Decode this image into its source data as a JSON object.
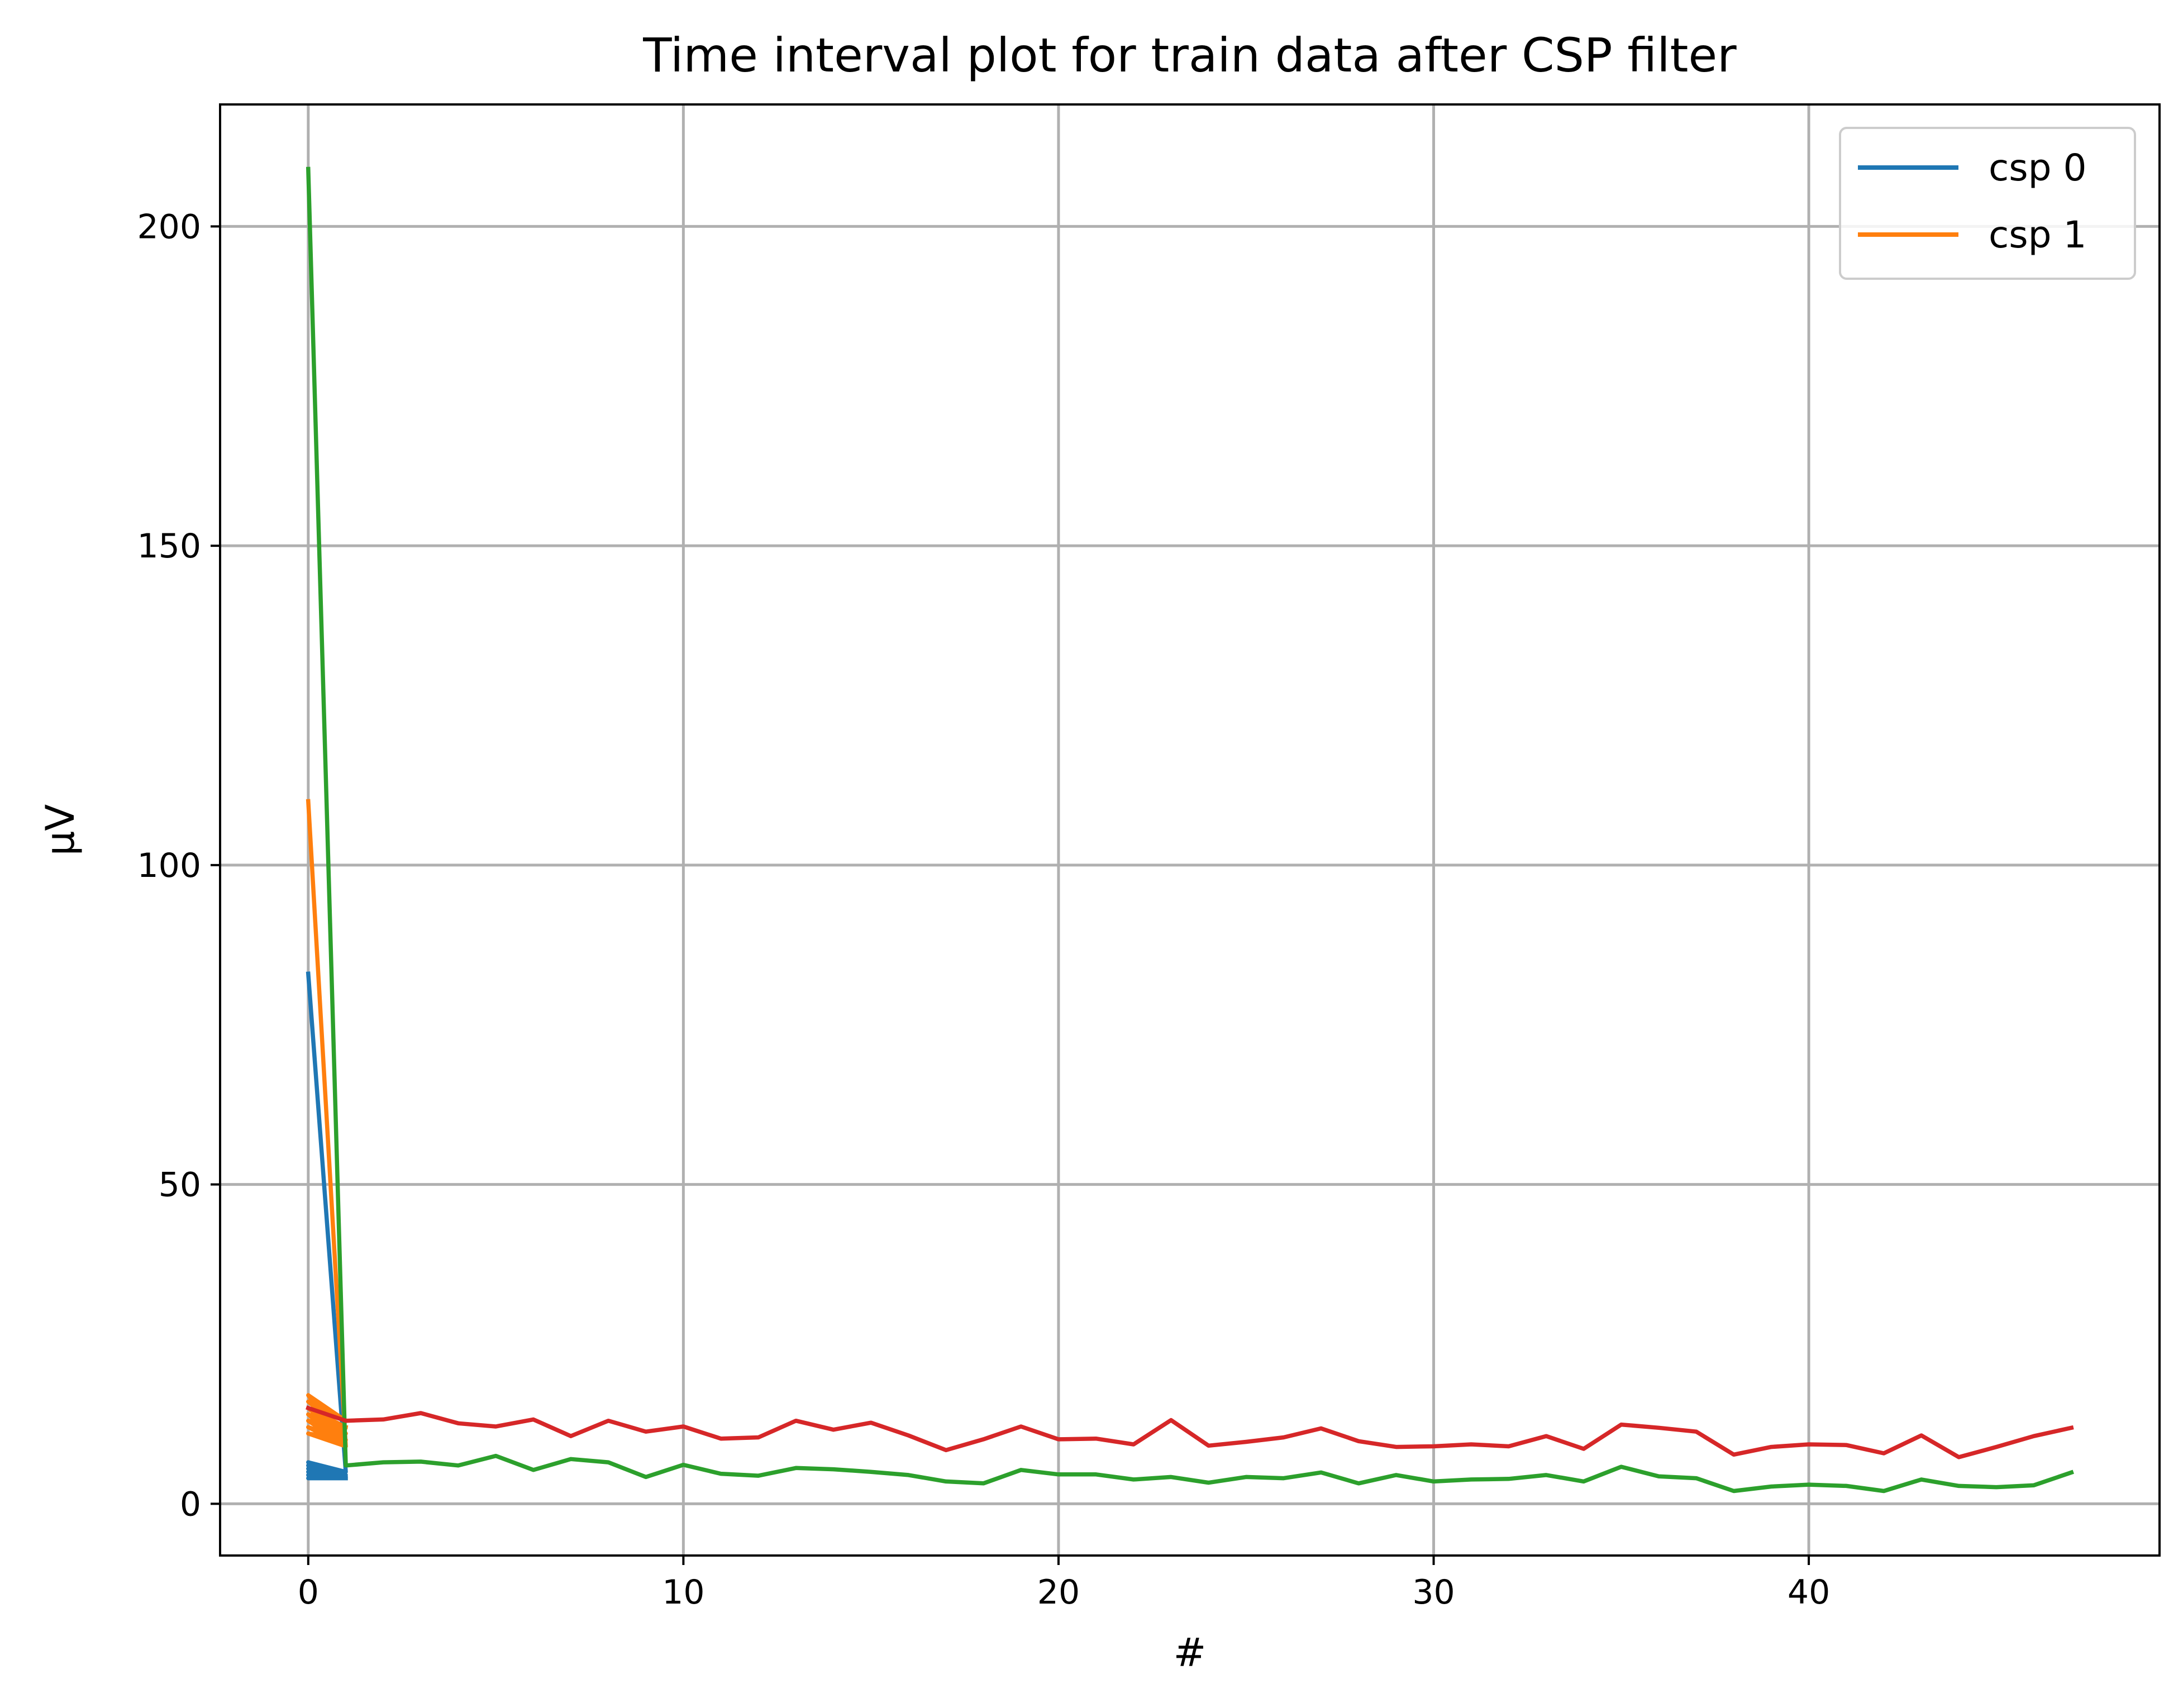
{
  "chart_data": {
    "type": "line",
    "title": "Time interval plot for train data after CSP filter",
    "xlabel": "#",
    "ylabel": "μV",
    "xlim": [
      -2.35,
      49.35
    ],
    "ylim": [
      -8.1,
      219.1
    ],
    "xticks": [
      0,
      10,
      20,
      30,
      40
    ],
    "yticks": [
      0,
      50,
      100,
      150,
      200
    ],
    "grid": true,
    "legend": {
      "location": "upper right",
      "entries": [
        "csp 0",
        "csp 1"
      ]
    },
    "series": [
      {
        "name": "csp 0",
        "color": "#1f77b4",
        "x": [
          0,
          1,
          0,
          1,
          0,
          1,
          0,
          1,
          0,
          1,
          0,
          1,
          0,
          1,
          0,
          1,
          0,
          1,
          0,
          1,
          0,
          1,
          0,
          1,
          0,
          1
        ],
        "y": [
          83,
          5,
          6.5,
          4,
          6,
          4.5,
          5.5,
          4,
          6,
          4,
          5,
          4,
          5.5,
          4,
          4.5,
          4,
          5,
          4,
          4.5,
          4,
          4,
          4,
          4.5,
          4,
          4,
          4
        ]
      },
      {
        "name": "csp 1",
        "color": "#ff7f0e",
        "x": [
          0,
          1,
          0,
          1,
          0,
          1,
          0,
          1,
          0,
          1,
          0,
          1,
          0,
          1,
          0,
          1,
          0,
          1,
          0,
          1,
          0,
          1,
          0,
          1,
          0,
          1
        ],
        "y": [
          110,
          9,
          17,
          13,
          16,
          11,
          15,
          12,
          14,
          10,
          13,
          11,
          15,
          10,
          12,
          9,
          14,
          11,
          13,
          10,
          12,
          10,
          11,
          9,
          13,
          12
        ]
      },
      {
        "color": "#2ca02c",
        "x": [
          0,
          1,
          2,
          3,
          4,
          5,
          6,
          7,
          8,
          9,
          10,
          11,
          12,
          13,
          14,
          15,
          16,
          17,
          18,
          19,
          20,
          21,
          22,
          23,
          24,
          25,
          26,
          27,
          28,
          29,
          30,
          31,
          32,
          33,
          34,
          35,
          36,
          37,
          38,
          39,
          40,
          41,
          42,
          43,
          44,
          45,
          46,
          47
        ],
        "y": [
          209,
          6,
          6.5,
          6.6,
          6,
          7.5,
          5.3,
          7,
          6.5,
          4.2,
          6.1,
          4.7,
          4.4,
          5.6,
          5.4,
          5,
          4.5,
          3.5,
          3.2,
          5.3,
          4.6,
          4.6,
          3.8,
          4.2,
          3.3,
          4.2,
          4,
          4.9,
          3.2,
          4.5,
          3.5,
          3.8,
          3.9,
          4.5,
          3.5,
          5.8,
          4.3,
          4,
          2,
          2.7,
          3,
          2.8,
          2,
          3.8,
          2.8,
          2.6,
          2.9,
          4.9
        ]
      },
      {
        "color": "#d62728",
        "x": [
          0,
          1,
          2,
          3,
          4,
          5,
          6,
          7,
          8,
          9,
          10,
          11,
          12,
          13,
          14,
          15,
          16,
          17,
          18,
          19,
          20,
          21,
          22,
          23,
          24,
          25,
          26,
          27,
          28,
          29,
          30,
          31,
          32,
          33,
          34,
          35,
          36,
          37,
          38,
          39,
          40,
          41,
          42,
          43,
          44,
          45,
          46,
          47
        ],
        "y": [
          15,
          13,
          13.2,
          14.2,
          12.6,
          12.1,
          13.2,
          10.6,
          13,
          11.3,
          12.1,
          10.2,
          10.4,
          13,
          11.6,
          12.7,
          10.7,
          8.4,
          10.1,
          12.1,
          10.1,
          10.2,
          9.3,
          13.1,
          9.1,
          9.7,
          10.4,
          11.8,
          9.8,
          8.9,
          9,
          9.3,
          9,
          10.6,
          8.6,
          12.4,
          11.9,
          11.3,
          7.7,
          8.9,
          9.3,
          9.2,
          7.9,
          10.7,
          7.3,
          8.9,
          10.6,
          11.9
        ]
      }
    ]
  }
}
